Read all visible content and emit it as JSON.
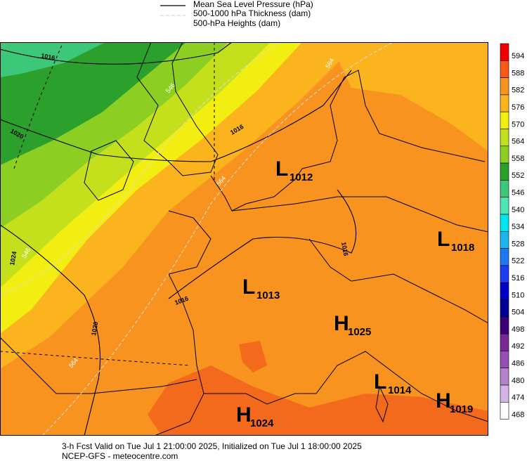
{
  "legend": [
    "Mean Sea Level Pressure (hPa)",
    "500-1000 hPa Thickness (dam)",
    "500-hPa Heights (dam)"
  ],
  "colorbar": [
    {
      "value": 594,
      "color": "#f00000"
    },
    {
      "value": 588,
      "color": "#f75a14"
    },
    {
      "value": 582,
      "color": "#f7931e"
    },
    {
      "value": 576,
      "color": "#fbb41e"
    },
    {
      "value": 570,
      "color": "#f2ee12"
    },
    {
      "value": 564,
      "color": "#c4e01c"
    },
    {
      "value": 558,
      "color": "#8ccf22"
    },
    {
      "value": 552,
      "color": "#2ca02c"
    },
    {
      "value": 546,
      "color": "#3cc878"
    },
    {
      "value": 540,
      "color": "#50e6b4"
    },
    {
      "value": 534,
      "color": "#00e6f0"
    },
    {
      "value": 528,
      "color": "#1eb4f0"
    },
    {
      "value": 522,
      "color": "#1e78f0"
    },
    {
      "value": 516,
      "color": "#1e3cf0"
    },
    {
      "value": 510,
      "color": "#0000c8"
    },
    {
      "value": 504,
      "color": "#000096"
    },
    {
      "value": 498,
      "color": "#3c0078"
    },
    {
      "value": 492,
      "color": "#782896"
    },
    {
      "value": 486,
      "color": "#9650b4"
    },
    {
      "value": 480,
      "color": "#b482c8"
    },
    {
      "value": 474,
      "color": "#d2b4e6"
    },
    {
      "value": 468,
      "color": "#ffffff"
    }
  ],
  "pressure_centers": [
    {
      "type": "L",
      "value": 1012
    },
    {
      "type": "L",
      "value": 1018
    },
    {
      "type": "L",
      "value": 1013
    },
    {
      "type": "H",
      "value": 1025
    },
    {
      "type": "L",
      "value": 1014
    },
    {
      "type": "H",
      "value": 1019
    },
    {
      "type": "H",
      "value": 1024
    }
  ],
  "isobar_labels": [
    "1016",
    "1020",
    "1024",
    "1020",
    "1016",
    "1016",
    "1016"
  ],
  "thickness_labels": [
    "546",
    "564",
    "546",
    "564",
    "564"
  ],
  "footer": [
    "3-h Fcst Valid on Tue Jul  1 21:00:00 2025, Initialized on Tue Jul  1 18:00:00 2025",
    "NCEP-GFS  - meteocentre.com"
  ]
}
